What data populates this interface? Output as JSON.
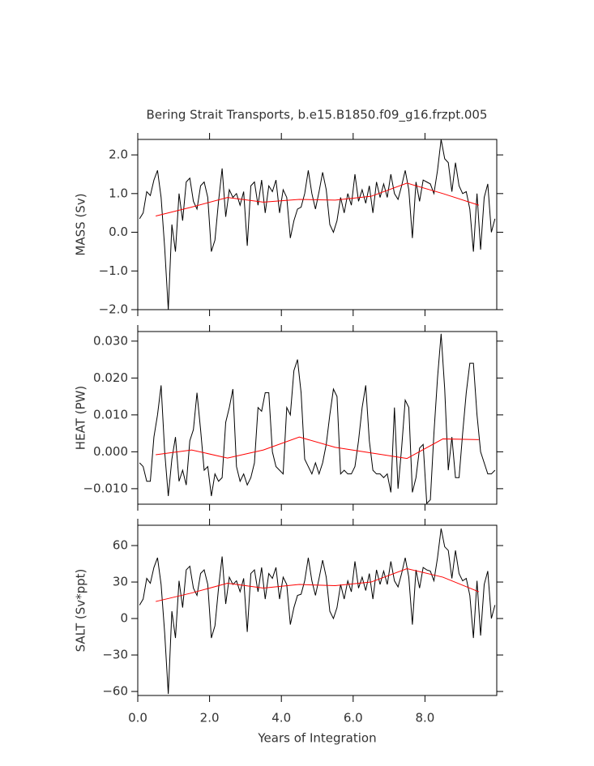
{
  "chart_data": [
    {
      "type": "line",
      "title": "Bering Strait Transports, b.e15.B1850.f09_g16.frzpt.005",
      "ylabel": "MASS (Sv)",
      "xlim": [
        0,
        10
      ],
      "xticks": [
        0,
        2,
        4,
        6,
        8
      ],
      "ylim": [
        -2,
        2.4
      ],
      "yticks": [
        {
          "value": -2,
          "label": "−2.0"
        },
        {
          "value": -1,
          "label": "−1.0"
        },
        {
          "value": 0,
          "label": "0.0"
        },
        {
          "value": 1,
          "label": "1.0"
        },
        {
          "value": 2,
          "label": "2.0"
        }
      ],
      "series": [
        {
          "color": "#000000",
          "x": [
            0.05,
            0.15,
            0.25,
            0.35,
            0.45,
            0.55,
            0.65,
            0.75,
            0.85,
            0.95,
            1.05,
            1.15,
            1.25,
            1.35,
            1.45,
            1.55,
            1.65,
            1.75,
            1.85,
            1.95,
            2.05,
            2.15,
            2.25,
            2.35,
            2.45,
            2.55,
            2.65,
            2.75,
            2.85,
            2.95,
            3.05,
            3.15,
            3.25,
            3.35,
            3.45,
            3.55,
            3.65,
            3.75,
            3.85,
            3.95,
            4.05,
            4.15,
            4.25,
            4.35,
            4.45,
            4.55,
            4.65,
            4.75,
            4.85,
            4.95,
            5.05,
            5.15,
            5.25,
            5.35,
            5.45,
            5.55,
            5.65,
            5.75,
            5.85,
            5.95,
            6.05,
            6.15,
            6.25,
            6.35,
            6.45,
            6.55,
            6.65,
            6.75,
            6.85,
            6.95,
            7.05,
            7.15,
            7.25,
            7.35,
            7.45,
            7.55,
            7.65,
            7.75,
            7.85,
            7.95,
            8.05,
            8.15,
            8.25,
            8.35,
            8.45,
            8.55,
            8.65,
            8.75,
            8.85,
            8.95,
            9.05,
            9.15,
            9.25,
            9.35,
            9.45,
            9.55,
            9.65,
            9.75,
            9.85,
            9.95
          ],
          "values": [
            0.35,
            0.5,
            1.05,
            0.95,
            1.35,
            1.6,
            0.9,
            -0.4,
            -2.0,
            0.2,
            -0.5,
            1.0,
            0.3,
            1.3,
            1.4,
            0.8,
            0.6,
            1.2,
            1.3,
            0.9,
            -0.5,
            -0.2,
            0.8,
            1.65,
            0.4,
            1.1,
            0.9,
            1.0,
            0.7,
            1.05,
            -0.35,
            1.2,
            1.3,
            0.7,
            1.35,
            0.5,
            1.2,
            1.05,
            1.35,
            0.5,
            1.1,
            0.9,
            -0.15,
            0.3,
            0.6,
            0.65,
            1.0,
            1.6,
            1.0,
            0.6,
            1.05,
            1.55,
            1.1,
            0.2,
            0.0,
            0.3,
            0.9,
            0.5,
            1.0,
            0.7,
            1.5,
            0.8,
            1.1,
            0.75,
            1.2,
            0.5,
            1.3,
            0.9,
            1.25,
            0.9,
            1.5,
            1.0,
            0.85,
            1.2,
            1.6,
            1.1,
            -0.15,
            1.3,
            0.8,
            1.35,
            1.3,
            1.25,
            1.0,
            1.6,
            2.4,
            1.9,
            1.8,
            1.05,
            1.8,
            1.2,
            1.0,
            1.05,
            0.6,
            -0.5,
            1.0,
            -0.45,
            0.9,
            1.25,
            0.0,
            0.35
          ]
        },
        {
          "color": "#ff0000",
          "x": [
            0.5,
            1.5,
            2.5,
            3.5,
            4.5,
            5.5,
            6.5,
            7.5,
            8.5,
            9.5
          ],
          "values": [
            0.42,
            0.65,
            0.9,
            0.78,
            0.85,
            0.83,
            0.93,
            1.27,
            1.0,
            0.7
          ]
        }
      ]
    },
    {
      "type": "line",
      "ylabel": "HEAT (PW)",
      "xlim": [
        0,
        10
      ],
      "xticks": [
        0,
        2,
        4,
        6,
        8
      ],
      "ylim": [
        -0.0142,
        0.0326
      ],
      "yticks": [
        {
          "value": -0.01,
          "label": "−0.010"
        },
        {
          "value": 0,
          "label": "0.000"
        },
        {
          "value": 0.01,
          "label": "0.010"
        },
        {
          "value": 0.02,
          "label": "0.020"
        },
        {
          "value": 0.03,
          "label": "0.030"
        }
      ],
      "series": [
        {
          "color": "#000000",
          "x": [
            0.05,
            0.15,
            0.25,
            0.35,
            0.45,
            0.55,
            0.65,
            0.75,
            0.85,
            0.95,
            1.05,
            1.15,
            1.25,
            1.35,
            1.45,
            1.55,
            1.65,
            1.75,
            1.85,
            1.95,
            2.05,
            2.15,
            2.25,
            2.35,
            2.45,
            2.55,
            2.65,
            2.75,
            2.85,
            2.95,
            3.05,
            3.15,
            3.25,
            3.35,
            3.45,
            3.55,
            3.65,
            3.75,
            3.85,
            3.95,
            4.05,
            4.15,
            4.25,
            4.35,
            4.45,
            4.55,
            4.65,
            4.75,
            4.85,
            4.95,
            5.05,
            5.15,
            5.25,
            5.35,
            5.45,
            5.55,
            5.65,
            5.75,
            5.85,
            5.95,
            6.05,
            6.15,
            6.25,
            6.35,
            6.45,
            6.55,
            6.65,
            6.75,
            6.85,
            6.95,
            7.05,
            7.15,
            7.25,
            7.35,
            7.45,
            7.55,
            7.65,
            7.75,
            7.85,
            7.95,
            8.05,
            8.15,
            8.25,
            8.35,
            8.45,
            8.55,
            8.65,
            8.75,
            8.85,
            8.95,
            9.05,
            9.15,
            9.25,
            9.35,
            9.45,
            9.55,
            9.65,
            9.75,
            9.85,
            9.95
          ],
          "values": [
            -0.003,
            -0.004,
            -0.008,
            -0.008,
            0.004,
            0.01,
            0.018,
            0.0,
            -0.012,
            -0.002,
            0.004,
            -0.008,
            -0.005,
            -0.009,
            0.003,
            0.006,
            0.016,
            0.006,
            -0.005,
            -0.004,
            -0.012,
            -0.006,
            -0.008,
            -0.007,
            0.008,
            0.012,
            0.017,
            -0.004,
            -0.008,
            -0.006,
            -0.009,
            -0.007,
            -0.003,
            0.012,
            0.011,
            0.016,
            0.016,
            0.0,
            -0.004,
            -0.005,
            -0.006,
            0.012,
            0.01,
            0.022,
            0.025,
            0.016,
            -0.002,
            -0.004,
            -0.006,
            -0.003,
            -0.006,
            -0.003,
            0.002,
            0.01,
            0.017,
            0.015,
            -0.006,
            -0.005,
            -0.006,
            -0.006,
            -0.004,
            0.003,
            0.012,
            0.018,
            0.003,
            -0.005,
            -0.006,
            -0.006,
            -0.007,
            -0.006,
            -0.011,
            0.012,
            -0.01,
            0.001,
            0.014,
            0.012,
            -0.011,
            -0.007,
            0.001,
            0.002,
            -0.014,
            -0.013,
            0.005,
            0.02,
            0.032,
            0.017,
            -0.005,
            0.004,
            -0.007,
            -0.007,
            0.005,
            0.016,
            0.024,
            0.024,
            0.01,
            0.0,
            -0.003,
            -0.006,
            -0.006,
            -0.005
          ]
        },
        {
          "color": "#ff0000",
          "x": [
            0.5,
            1.5,
            2.5,
            3.5,
            4.5,
            5.5,
            6.5,
            7.5,
            8.5,
            9.5
          ],
          "values": [
            -0.0008,
            0.0005,
            -0.0017,
            0.0005,
            0.004,
            0.0012,
            -0.0003,
            -0.0018,
            0.0035,
            0.0033
          ]
        }
      ]
    },
    {
      "type": "line",
      "ylabel": "SALT (Sv*ppt)",
      "xlabel": "Years of Integration",
      "xlim": [
        0,
        10
      ],
      "xticks": [
        {
          "value": 0,
          "label": "0.0"
        },
        {
          "value": 2,
          "label": "2.0"
        },
        {
          "value": 4,
          "label": "4.0"
        },
        {
          "value": 6,
          "label": "6.0"
        },
        {
          "value": 8,
          "label": "8.0"
        }
      ],
      "ylim": [
        -63.3,
        76.7
      ],
      "yticks": [
        {
          "value": -60,
          "label": "−60"
        },
        {
          "value": -30,
          "label": "−30"
        },
        0,
        30,
        60
      ],
      "series": [
        {
          "color": "#000000",
          "x": [
            0.05,
            0.15,
            0.25,
            0.35,
            0.45,
            0.55,
            0.65,
            0.75,
            0.85,
            0.95,
            1.05,
            1.15,
            1.25,
            1.35,
            1.45,
            1.55,
            1.65,
            1.75,
            1.85,
            1.95,
            2.05,
            2.15,
            2.25,
            2.35,
            2.45,
            2.55,
            2.65,
            2.75,
            2.85,
            2.95,
            3.05,
            3.15,
            3.25,
            3.35,
            3.45,
            3.55,
            3.65,
            3.75,
            3.85,
            3.95,
            4.05,
            4.15,
            4.25,
            4.35,
            4.45,
            4.55,
            4.65,
            4.75,
            4.85,
            4.95,
            5.05,
            5.15,
            5.25,
            5.35,
            5.45,
            5.55,
            5.65,
            5.75,
            5.85,
            5.95,
            6.05,
            6.15,
            6.25,
            6.35,
            6.45,
            6.55,
            6.65,
            6.75,
            6.85,
            6.95,
            7.05,
            7.15,
            7.25,
            7.35,
            7.45,
            7.55,
            7.65,
            7.75,
            7.85,
            7.95,
            8.05,
            8.15,
            8.25,
            8.35,
            8.45,
            8.55,
            8.65,
            8.75,
            8.85,
            8.95,
            9.05,
            9.15,
            9.25,
            9.35,
            9.45,
            9.55,
            9.65,
            9.75,
            9.85,
            9.95
          ],
          "values": [
            11,
            16,
            33,
            29,
            42,
            50,
            28,
            -12,
            -62,
            6,
            -16,
            31,
            9,
            40,
            43,
            25,
            19,
            37,
            40,
            28,
            -16,
            -6,
            25,
            51,
            12,
            34,
            28,
            31,
            22,
            33,
            -11,
            37,
            40,
            22,
            42,
            16,
            37,
            33,
            42,
            16,
            34,
            28,
            -5,
            9,
            19,
            20,
            31,
            50,
            31,
            19,
            33,
            48,
            34,
            6,
            0,
            9,
            28,
            16,
            31,
            22,
            47,
            25,
            34,
            23,
            37,
            16,
            40,
            28,
            39,
            28,
            47,
            31,
            26,
            37,
            50,
            34,
            -5,
            40,
            25,
            42,
            40,
            39,
            31,
            50,
            74,
            59,
            56,
            33,
            56,
            37,
            31,
            33,
            19,
            -16,
            31,
            -14,
            28,
            39,
            0,
            11
          ]
        },
        {
          "color": "#ff0000",
          "x": [
            0.5,
            1.5,
            2.5,
            3.5,
            4.5,
            5.5,
            6.5,
            7.5,
            8.5,
            9.5
          ],
          "values": [
            14,
            21,
            29,
            25,
            28,
            27,
            30,
            41,
            34,
            22
          ]
        }
      ]
    }
  ]
}
